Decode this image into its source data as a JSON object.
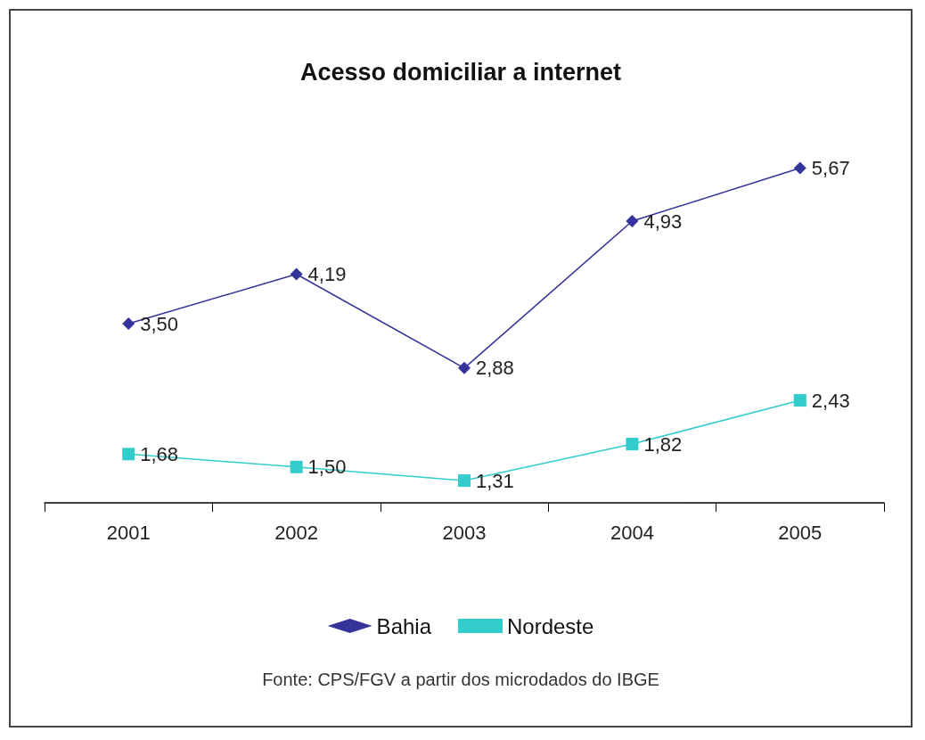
{
  "chart_data": {
    "type": "line",
    "title": "Acesso domiciliar a internet",
    "categories": [
      "2001",
      "2002",
      "2003",
      "2004",
      "2005"
    ],
    "series": [
      {
        "name": "Bahia",
        "color": "#333399",
        "marker": "diamond",
        "values": [
          3.5,
          4.19,
          2.88,
          4.93,
          5.67
        ],
        "value_labels": [
          "3,50",
          "4,19",
          "2,88",
          "4,93",
          "5,67"
        ]
      },
      {
        "name": "Nordeste",
        "color": "#33cccc",
        "marker": "square",
        "values": [
          1.68,
          1.5,
          1.31,
          1.82,
          2.43
        ],
        "value_labels": [
          "1,68",
          "1,50",
          "1,31",
          "1,82",
          "2,43"
        ]
      }
    ],
    "legend": "bottom",
    "grid": false,
    "annotations": [
      "Fonte: CPS/FGV a partir dos microdados do IBGE"
    ]
  }
}
